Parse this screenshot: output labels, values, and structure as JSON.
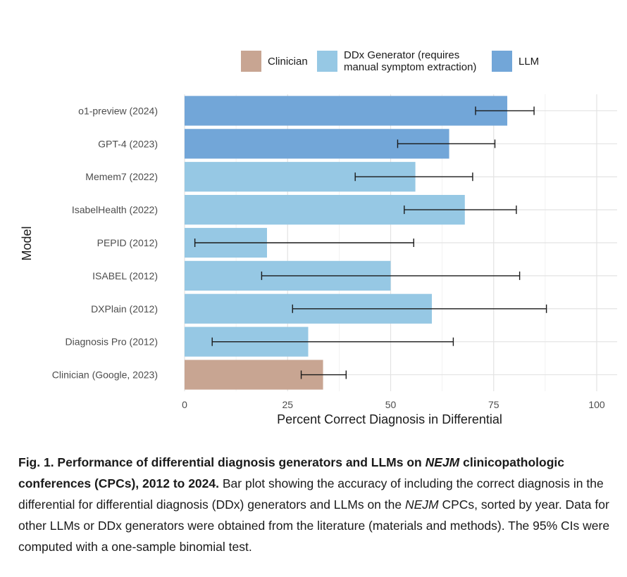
{
  "chart_data": {
    "type": "bar",
    "orientation": "horizontal",
    "categories": [
      "o1-preview (2024)",
      "GPT-4 (2023)",
      "Memem7 (2022)",
      "IsabelHealth (2022)",
      "PEPID (2012)",
      "ISABEL (2012)",
      "DXPlain (2012)",
      "Diagnosis Pro (2012)",
      "Clinician (Google, 2023)"
    ],
    "values": [
      78.3,
      64.2,
      56,
      68,
      20,
      50,
      60,
      30,
      33.6
    ],
    "ci_lower": [
      70.6,
      51.7,
      41.4,
      53.3,
      2.5,
      18.7,
      26.2,
      6.7,
      28.3
    ],
    "ci_upper": [
      84.8,
      75.3,
      69.9,
      80.5,
      55.6,
      81.3,
      87.8,
      65.2,
      39.2
    ],
    "groups": [
      "LLM",
      "LLM",
      "DDx Generator",
      "DDx Generator",
      "DDx Generator",
      "DDx Generator",
      "DDx Generator",
      "DDx Generator",
      "Clinician"
    ],
    "legend": [
      {
        "key": "Clinician",
        "lines": [
          "Clinician"
        ],
        "color": "#c8a592"
      },
      {
        "key": "DDx Generator",
        "lines": [
          "DDx Generator (requires",
          "manual symptom extraction)"
        ],
        "color": "#96c8e4"
      },
      {
        "key": "LLM",
        "lines": [
          "LLM"
        ],
        "color": "#72a6d8"
      }
    ],
    "legend_position": "top",
    "xlabel": "Percent Correct Diagnosis in Differential",
    "ylabel": "Model",
    "xlim": [
      0,
      100
    ],
    "xticks": [
      0,
      25,
      50,
      75,
      100
    ],
    "grid": true
  },
  "caption": {
    "fig_label": "Fig. 1.",
    "title_a": " Performance of differential diagnosis generators and LLMs on ",
    "title_em": "NEJM",
    "title_b": " clinicopathologic conferences (CPCs), 2012 to 2024.",
    "body_a": " Bar plot showing the accuracy of including the correct diagnosis in the differential for differential diagnosis (DDx) generators and LLMs on the ",
    "body_em": "NEJM",
    "body_b": " CPCs, sorted by year. Data for other LLMs or DDx generators were obtained from the literature (materials and methods). The 95% CIs were computed with a one-sample binomial test."
  }
}
